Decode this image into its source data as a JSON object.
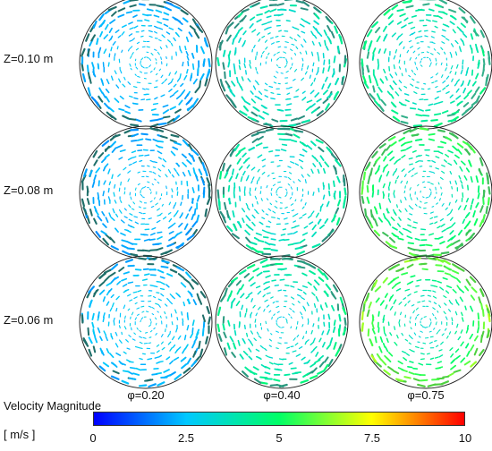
{
  "rows": [
    {
      "label": "Z=0.10 m"
    },
    {
      "label": "Z=0.08 m"
    },
    {
      "label": "Z=0.06 m"
    }
  ],
  "columns": [
    {
      "label": "φ=0.20"
    },
    {
      "label": "φ=0.40"
    },
    {
      "label": "φ=0.75"
    }
  ],
  "panels": [
    [
      {
        "wall_speed": 2.0,
        "core_speed": 2.6,
        "wall_color": "#1f6f6a"
      },
      {
        "wall_speed": 4.0,
        "core_speed": 2.9,
        "wall_color": "#2a8f7f"
      },
      {
        "wall_speed": 4.6,
        "core_speed": 3.0,
        "wall_color": "#33b08a"
      }
    ],
    [
      {
        "wall_speed": 2.0,
        "core_speed": 2.6,
        "wall_color": "#1f6f6a"
      },
      {
        "wall_speed": 4.2,
        "core_speed": 2.9,
        "wall_color": "#2a8f7f"
      },
      {
        "wall_speed": 5.8,
        "core_speed": 3.2,
        "wall_color": "#3fbf5a"
      }
    ],
    [
      {
        "wall_speed": 2.2,
        "core_speed": 2.7,
        "wall_color": "#1f6f6a"
      },
      {
        "wall_speed": 4.5,
        "core_speed": 3.0,
        "wall_color": "#2a9a7f"
      },
      {
        "wall_speed": 6.5,
        "core_speed": 3.3,
        "wall_color": "#4fd040"
      }
    ]
  ],
  "colorbar": {
    "title": "Velocity Magnitude",
    "units": "[ m/s ]",
    "min": 0,
    "max": 10,
    "ticks": [
      "0",
      "2.5",
      "5",
      "7.5",
      "10"
    ],
    "colors": [
      "#0000ff",
      "#00c8ff",
      "#00ff66",
      "#ffff00",
      "#ff0000"
    ]
  }
}
